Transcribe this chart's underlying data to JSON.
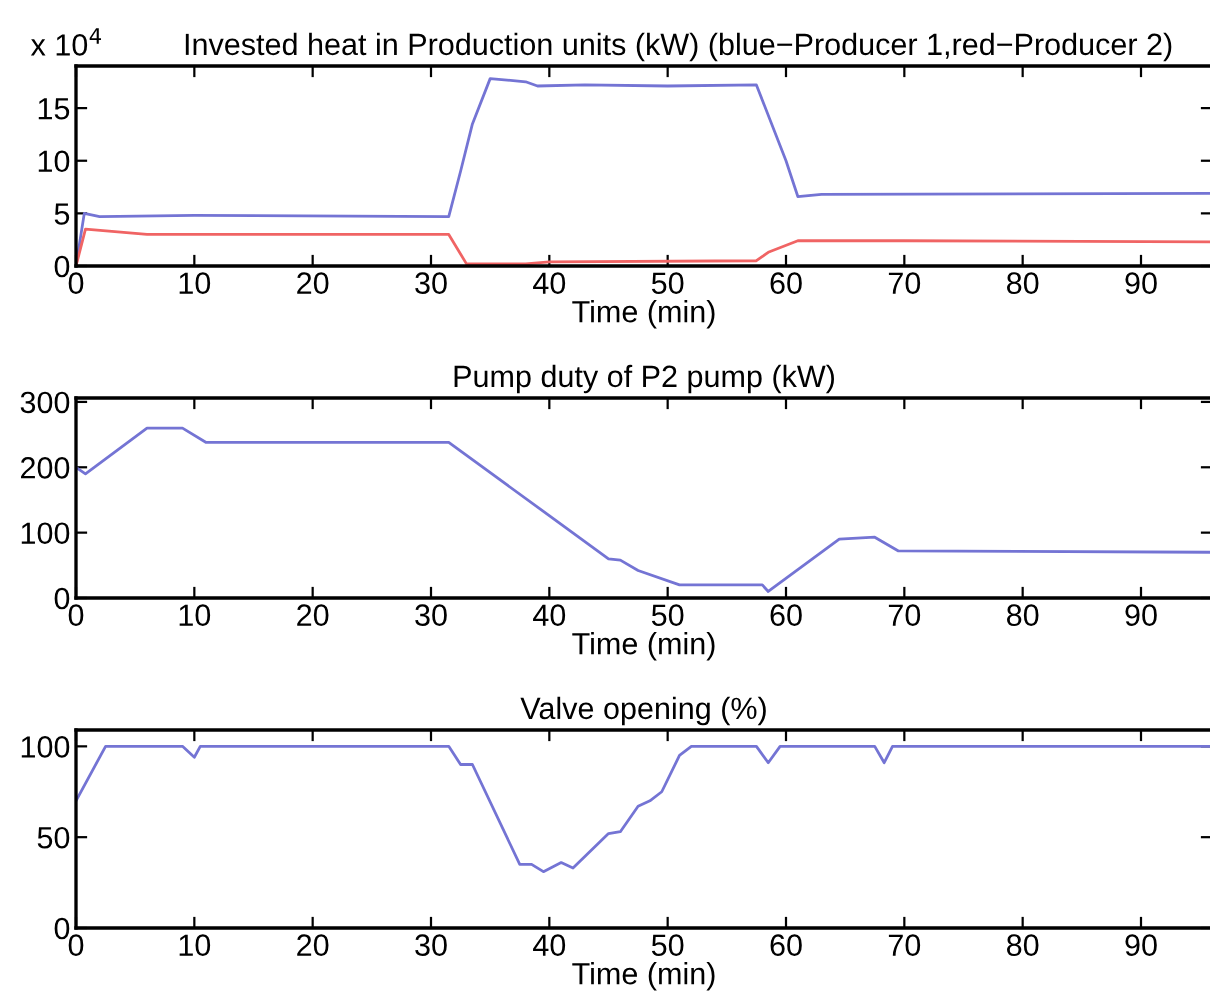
{
  "chart_data": [
    {
      "type": "line",
      "title": "Invested heat in Production units (kW) (blue−Producer 1,red−Producer 2)",
      "xlabel": "Time (min)",
      "annotations": [
        "x 10$^{4}$"
      ],
      "xlim": [
        0,
        96
      ],
      "xticks": [
        0,
        10,
        20,
        30,
        40,
        50,
        60,
        70,
        80,
        90
      ],
      "ylim": [
        0,
        19
      ],
      "yticks": [
        0,
        5,
        10,
        15
      ],
      "grid": false,
      "legend": false,
      "series": [
        {
          "color": "#7474d4",
          "x": [
            0,
            0.7,
            2,
            10,
            31.5,
            32.5,
            33.5,
            35,
            38,
            39,
            43,
            50,
            57.5,
            60,
            61,
            63,
            96
          ],
          "values": [
            0,
            5,
            4.7,
            4.8,
            4.7,
            9,
            13.5,
            17.8,
            17.5,
            17.1,
            17.2,
            17.1,
            17.2,
            10,
            6.6,
            6.8,
            6.9
          ]
        },
        {
          "color": "#f06464",
          "x": [
            0,
            0.8,
            6,
            31.5,
            33,
            38,
            40,
            57.5,
            58.5,
            61,
            70,
            96
          ],
          "values": [
            0,
            3.5,
            3.0,
            3.0,
            0.2,
            0.2,
            0.4,
            0.5,
            1.3,
            2.4,
            2.4,
            2.3
          ]
        }
      ]
    },
    {
      "type": "line",
      "title": "Pump duty of P2 pump (kW)",
      "xlabel": "Time (min)",
      "xlim": [
        0,
        96
      ],
      "xticks": [
        0,
        10,
        20,
        30,
        40,
        50,
        60,
        70,
        80,
        90
      ],
      "ylim": [
        0,
        306
      ],
      "yticks": [
        0,
        100,
        200,
        300
      ],
      "grid": false,
      "legend": false,
      "series": [
        {
          "color": "#7474d4",
          "x": [
            0,
            0.8,
            6,
            9,
            11,
            31.5,
            45,
            46,
            47.5,
            51,
            58,
            58.5,
            64.5,
            67.5,
            69.5,
            96
          ],
          "values": [
            200,
            190,
            260,
            260,
            238,
            238,
            60,
            58,
            42,
            20,
            20,
            10,
            90,
            93,
            72,
            70
          ]
        }
      ]
    },
    {
      "type": "line",
      "title": "Valve opening (%)",
      "xlabel": "Time (min)",
      "xlim": [
        0,
        96
      ],
      "xticks": [
        0,
        10,
        20,
        30,
        40,
        50,
        60,
        70,
        80,
        90
      ],
      "ylim": [
        0,
        109
      ],
      "yticks": [
        0,
        50,
        100
      ],
      "grid": false,
      "legend": false,
      "series": [
        {
          "color": "#7474d4",
          "x": [
            0,
            2.5,
            9,
            10,
            10.5,
            31.5,
            32.5,
            33.5,
            37.5,
            38.5,
            39.5,
            41,
            42,
            45,
            46,
            47.5,
            48.5,
            49.5,
            51,
            52,
            57.5,
            58.5,
            59.5,
            67.5,
            68.3,
            69,
            96
          ],
          "values": [
            70,
            100,
            100,
            94,
            100,
            100,
            90,
            90,
            35,
            35,
            31,
            36,
            33,
            52,
            53,
            67,
            70,
            75,
            95,
            100,
            100,
            91,
            100,
            100,
            91,
            100,
            100
          ]
        }
      ]
    }
  ]
}
